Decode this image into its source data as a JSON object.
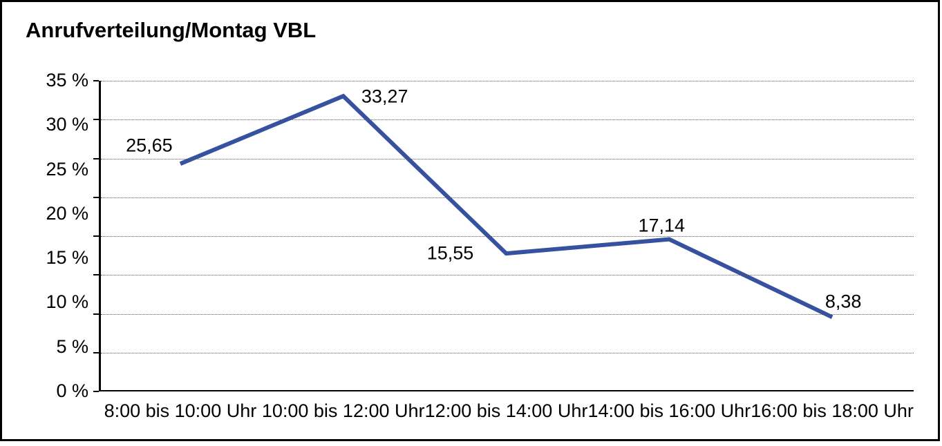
{
  "frame": {
    "border_color": "#000000",
    "background_color": "#ffffff"
  },
  "chart_data": {
    "type": "line",
    "title": "Anrufverteilung/Montag VBL",
    "categories": [
      "8:00 bis 10:00 Uhr",
      "10:00 bis 12:00 Uhr",
      "12:00 bis 14:00 Uhr",
      "14:00 bis 16:00 Uhr",
      "16:00 bis 18:00 Uhr"
    ],
    "values": [
      25.65,
      33.27,
      15.55,
      17.14,
      8.38
    ],
    "point_labels": [
      "25,65",
      "33,27",
      "15,55",
      "17,14",
      "8,38"
    ],
    "label_positions": [
      "above-left",
      "right",
      "left",
      "above",
      "above-right"
    ],
    "xlabel": "",
    "ylabel": "",
    "ylim": [
      0,
      35
    ],
    "y_ticks": [
      {
        "label": "35 %",
        "value": 35
      },
      {
        "label": "30 %",
        "value": 30
      },
      {
        "label": "25 %",
        "value": 25
      },
      {
        "label": "20 %",
        "value": 20
      },
      {
        "label": "15 %",
        "value": 15
      },
      {
        "label": "10 %",
        "value": 10
      },
      {
        "label": "5 %",
        "value": 5
      },
      {
        "label": "0 %",
        "value": 0
      }
    ],
    "grid": "horizontal-dotted",
    "gridline_divisions": 8,
    "legend": "none",
    "line_color": "#35519F",
    "line_width": 6
  }
}
